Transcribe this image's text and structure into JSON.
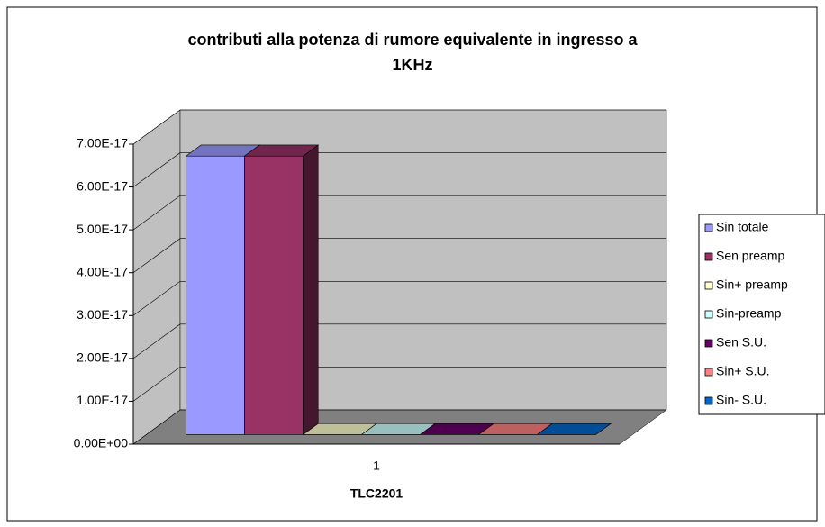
{
  "chart_data": {
    "type": "bar3d",
    "title": "contributi alla potenza di rumore equivalente in ingresso a 1KHz",
    "categories": [
      "1"
    ],
    "x_label": "TLC2201",
    "ylim": [
      0,
      7e-17
    ],
    "yticks": [
      {
        "value": 0,
        "label": "0.00E+00"
      },
      {
        "value": 1e-17,
        "label": "1.00E-17"
      },
      {
        "value": 2e-17,
        "label": "2.00E-17"
      },
      {
        "value": 3e-17,
        "label": "3.00E-17"
      },
      {
        "value": 4e-17,
        "label": "4.00E-17"
      },
      {
        "value": 5e-17,
        "label": "5.00E-17"
      },
      {
        "value": 6e-17,
        "label": "6.00E-17"
      },
      {
        "value": 7e-17,
        "label": "7.00E-17"
      }
    ],
    "grid": true,
    "legend": "right",
    "series": [
      {
        "name": "Sin totale",
        "color": "#9999ff",
        "values": [
          6.5e-17
        ]
      },
      {
        "name": "Sen preamp",
        "color": "#993366",
        "values": [
          6.5e-17
        ]
      },
      {
        "name": "Sin+ preamp",
        "color": "#ffffcc",
        "values": [
          0
        ]
      },
      {
        "name": "Sin-preamp",
        "color": "#ccffff",
        "values": [
          0
        ]
      },
      {
        "name": "Sen S.U.",
        "color": "#660066",
        "values": [
          0
        ]
      },
      {
        "name": "Sin+ S.U.",
        "color": "#ff8080",
        "values": [
          0
        ]
      },
      {
        "name": "Sin- S.U.",
        "color": "#0066cc",
        "values": [
          0
        ]
      }
    ]
  }
}
